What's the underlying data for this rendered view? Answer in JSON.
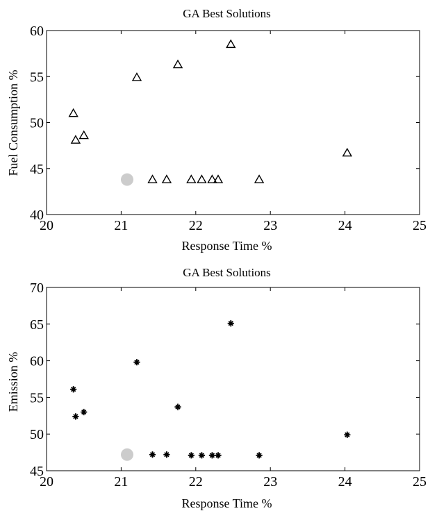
{
  "chart_data": [
    {
      "type": "scatter",
      "title": "GA Best Solutions",
      "xlabel": "Response Time %",
      "ylabel": "Fuel Consumption %",
      "xlim": [
        20,
        25
      ],
      "ylim": [
        40,
        60
      ],
      "xticks": [
        20,
        21,
        22,
        23,
        24,
        25
      ],
      "yticks": [
        40,
        45,
        50,
        55,
        60
      ],
      "grid": false,
      "legend": "none",
      "series": [
        {
          "marker": "triangle-open",
          "color": "#000000",
          "points": [
            {
              "x": 20.36,
              "y": 51.0
            },
            {
              "x": 20.39,
              "y": 48.1
            },
            {
              "x": 20.5,
              "y": 48.6
            },
            {
              "x": 21.21,
              "y": 54.9
            },
            {
              "x": 21.76,
              "y": 56.3
            },
            {
              "x": 22.47,
              "y": 58.5
            },
            {
              "x": 21.42,
              "y": 43.8
            },
            {
              "x": 21.61,
              "y": 43.8
            },
            {
              "x": 21.94,
              "y": 43.8
            },
            {
              "x": 22.08,
              "y": 43.8
            },
            {
              "x": 22.22,
              "y": 43.8
            },
            {
              "x": 22.3,
              "y": 43.8
            },
            {
              "x": 22.85,
              "y": 43.8
            },
            {
              "x": 24.03,
              "y": 46.7
            }
          ]
        },
        {
          "marker": "circle-filled",
          "color": "#cccccc",
          "points": [
            {
              "x": 21.08,
              "y": 43.8
            }
          ]
        }
      ]
    },
    {
      "type": "scatter",
      "title": "GA Best Solutions",
      "xlabel": "Response Time %",
      "ylabel": "Emission %",
      "xlim": [
        20,
        25
      ],
      "ylim": [
        45,
        70
      ],
      "xticks": [
        20,
        21,
        22,
        23,
        24,
        25
      ],
      "yticks": [
        45,
        50,
        55,
        60,
        65,
        70
      ],
      "grid": false,
      "legend": "none",
      "series": [
        {
          "marker": "star-filled",
          "color": "#000000",
          "points": [
            {
              "x": 20.36,
              "y": 56.1
            },
            {
              "x": 20.39,
              "y": 52.4
            },
            {
              "x": 20.5,
              "y": 53.0
            },
            {
              "x": 21.21,
              "y": 59.8
            },
            {
              "x": 21.76,
              "y": 53.7
            },
            {
              "x": 22.47,
              "y": 65.1
            },
            {
              "x": 21.42,
              "y": 47.2
            },
            {
              "x": 21.61,
              "y": 47.2
            },
            {
              "x": 21.94,
              "y": 47.1
            },
            {
              "x": 22.08,
              "y": 47.1
            },
            {
              "x": 22.22,
              "y": 47.1
            },
            {
              "x": 22.3,
              "y": 47.1
            },
            {
              "x": 22.85,
              "y": 47.1
            },
            {
              "x": 24.03,
              "y": 49.9
            }
          ]
        },
        {
          "marker": "circle-filled",
          "color": "#cccccc",
          "points": [
            {
              "x": 21.08,
              "y": 47.2
            }
          ]
        }
      ]
    }
  ]
}
